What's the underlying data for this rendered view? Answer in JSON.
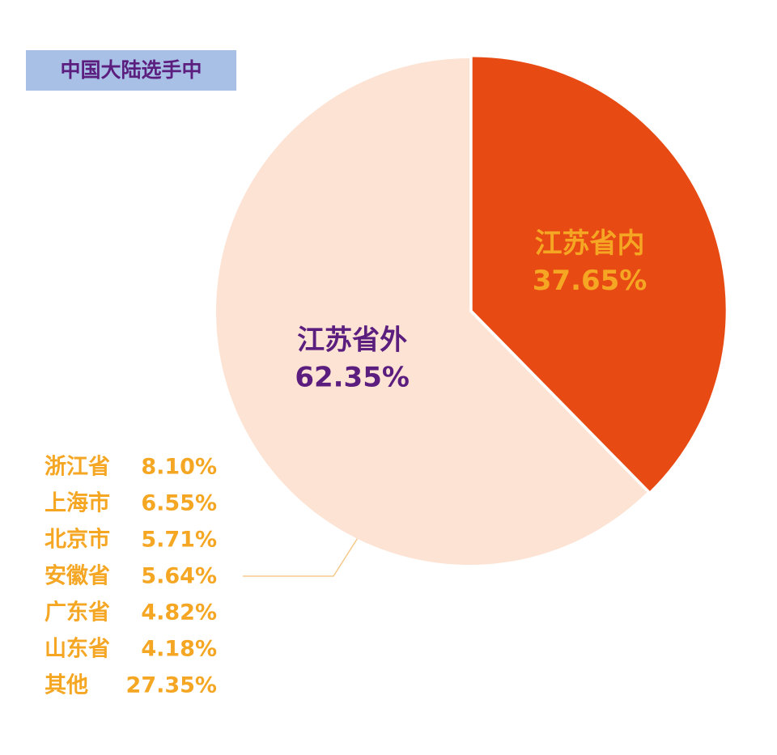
{
  "chart_data": {
    "type": "pie",
    "title": "中国大陆选手中",
    "categories": [
      "江苏省内",
      "江苏省外"
    ],
    "values": [
      37.65,
      62.35
    ],
    "value_labels": [
      "37.65%",
      "62.35%"
    ],
    "colors": [
      "#e84a14",
      "#fde3d4"
    ],
    "label_colors": [
      "#f5a623",
      "#5b1e7e"
    ],
    "breakdown": {
      "categories": [
        "浙江省",
        "上海市",
        "北京市",
        "安徽省",
        "广东省",
        "山东省",
        "其他"
      ],
      "values": [
        8.1,
        6.55,
        5.71,
        5.64,
        4.82,
        4.18,
        27.35
      ],
      "value_labels": [
        "8.10%",
        "6.55%",
        "5.71%",
        "5.64%",
        "4.82%",
        "4.18%",
        "27.35%"
      ],
      "color": "#f5a623"
    }
  }
}
